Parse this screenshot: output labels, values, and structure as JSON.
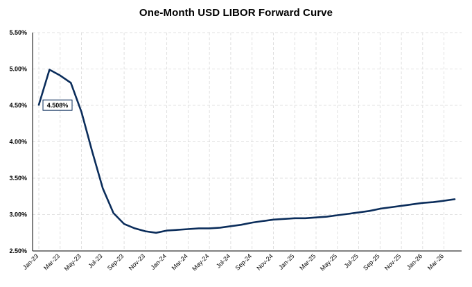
{
  "chart_data": {
    "type": "line",
    "title": "One-Month USD LIBOR Forward Curve",
    "xlabel": "",
    "ylabel": "",
    "ylim": [
      2.5,
      5.5
    ],
    "y_ticks": [
      "2.50%",
      "3.00%",
      "3.50%",
      "4.00%",
      "4.50%",
      "5.00%",
      "5.50%"
    ],
    "y_tick_values": [
      2.5,
      3.0,
      3.5,
      4.0,
      4.5,
      5.0,
      5.5
    ],
    "x_tick_labels": [
      "Jan-23",
      "Mar-23",
      "May-23",
      "Jul-23",
      "Sep-23",
      "Nov-23",
      "Jan-24",
      "Mar-24",
      "May-24",
      "Jul-24",
      "Sep-24",
      "Nov-24",
      "Jan-25",
      "Mar-25",
      "May-25",
      "Jul-25",
      "Sep-25",
      "Nov-25",
      "Jan-26",
      "Mar-26"
    ],
    "grid": true,
    "annotation": {
      "text": "4.508%",
      "x": "Jan-23",
      "y": 4.508
    },
    "series": [
      {
        "color": "#0b2d5b",
        "x": [
          "Jan-23",
          "Feb-23",
          "Mar-23",
          "Apr-23",
          "May-23",
          "Jun-23",
          "Jul-23",
          "Aug-23",
          "Sep-23",
          "Oct-23",
          "Nov-23",
          "Dec-23",
          "Jan-24",
          "Feb-24",
          "Mar-24",
          "Apr-24",
          "May-24",
          "Jun-24",
          "Jul-24",
          "Aug-24",
          "Sep-24",
          "Oct-24",
          "Nov-24",
          "Dec-24",
          "Jan-25",
          "Feb-25",
          "Mar-25",
          "Apr-25",
          "May-25",
          "Jun-25",
          "Jul-25",
          "Aug-25",
          "Sep-25",
          "Oct-25",
          "Nov-25",
          "Dec-25",
          "Jan-26",
          "Feb-26",
          "Mar-26",
          "Apr-26"
        ],
        "values": [
          4.508,
          4.99,
          4.91,
          4.81,
          4.41,
          3.87,
          3.36,
          3.02,
          2.87,
          2.81,
          2.77,
          2.75,
          2.78,
          2.79,
          2.8,
          2.81,
          2.81,
          2.82,
          2.84,
          2.86,
          2.89,
          2.91,
          2.93,
          2.94,
          2.95,
          2.95,
          2.96,
          2.97,
          2.99,
          3.01,
          3.03,
          3.05,
          3.08,
          3.1,
          3.12,
          3.14,
          3.16,
          3.17,
          3.19,
          3.21
        ]
      }
    ]
  }
}
